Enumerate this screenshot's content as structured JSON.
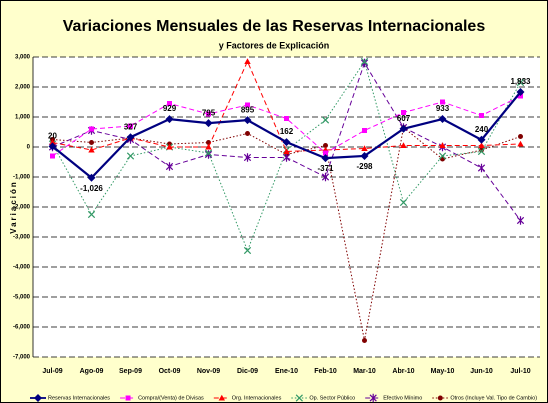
{
  "chart_data": {
    "type": "line",
    "title": "Variaciones Mensuales de las Reservas Internacionales",
    "subtitle": "y Factores de Explicación",
    "y_label": "Variación",
    "categories": [
      "Jul-09",
      "Ago-09",
      "Sep-09",
      "Oct-09",
      "Nov-09",
      "Dic-09",
      "Ene-10",
      "Feb-10",
      "Mar-10",
      "Abr-10",
      "May-10",
      "Jun-10",
      "Jul-10"
    ],
    "ylim": [
      -7000,
      3000
    ],
    "yticks": [
      {
        "value": 3000,
        "label": "3,000"
      },
      {
        "value": 2000,
        "label": "2,000"
      },
      {
        "value": 1000,
        "label": "1,000"
      },
      0,
      {
        "value": -1000,
        "label": "-1,000"
      },
      {
        "value": -2000,
        "label": "-2,000"
      },
      {
        "value": -3000,
        "label": "-3,000"
      },
      {
        "value": -4000,
        "label": "-4,000"
      },
      {
        "value": -5000,
        "label": "-5,000"
      },
      {
        "value": -6000,
        "label": "-6,000"
      },
      {
        "value": -7000,
        "label": "-7,000"
      }
    ],
    "grid": true,
    "legend": "bottom",
    "series": [
      {
        "name": "Reservas Internacionales",
        "color": "#000080",
        "dash": "solid",
        "marker": "diamond",
        "values": [
          20,
          -1026,
          327,
          929,
          795,
          895,
          162,
          -371,
          -298,
          607,
          933,
          240,
          1833
        ],
        "value_labels": [
          "20",
          "-1,026",
          "327",
          "929",
          "795",
          "895",
          "162",
          "-371",
          "-298",
          "607",
          "933",
          "240",
          "1,833"
        ]
      },
      {
        "name": "Compra/(Venta) de Divisas",
        "color": "#ff00ff",
        "dash": "dashed",
        "marker": "square",
        "values": [
          -300,
          600,
          700,
          1450,
          1100,
          1400,
          950,
          -200,
          550,
          1150,
          1500,
          1050,
          1700
        ]
      },
      {
        "name": "Org. Internacionales",
        "color": "#ff0000",
        "dash": "dashed",
        "marker": "triangle",
        "values": [
          150,
          -100,
          300,
          0,
          0,
          2850,
          -150,
          -100,
          -50,
          50,
          50,
          50,
          100
        ]
      },
      {
        "name": "Op. Sector Público",
        "color": "#339966",
        "dash": "dotted",
        "marker": "x",
        "values": [
          100,
          -2250,
          -300,
          0,
          -200,
          -3450,
          -100,
          900,
          2850,
          -1850,
          -300,
          -150,
          2150
        ]
      },
      {
        "name": "Efectivo Mínimo",
        "color": "#660099",
        "dash": "dashed",
        "marker": "star",
        "values": [
          0,
          550,
          250,
          -650,
          -250,
          -350,
          -350,
          -1000,
          2800,
          650,
          0,
          -700,
          -2450
        ]
      },
      {
        "name": "Otros (Incluye Val. Tipo de Cambio)",
        "color": "#800000",
        "dash": "dotted",
        "marker": "circle",
        "values": [
          250,
          150,
          300,
          100,
          150,
          450,
          -250,
          50,
          -6450,
          650,
          -400,
          -100,
          350
        ]
      }
    ]
  }
}
